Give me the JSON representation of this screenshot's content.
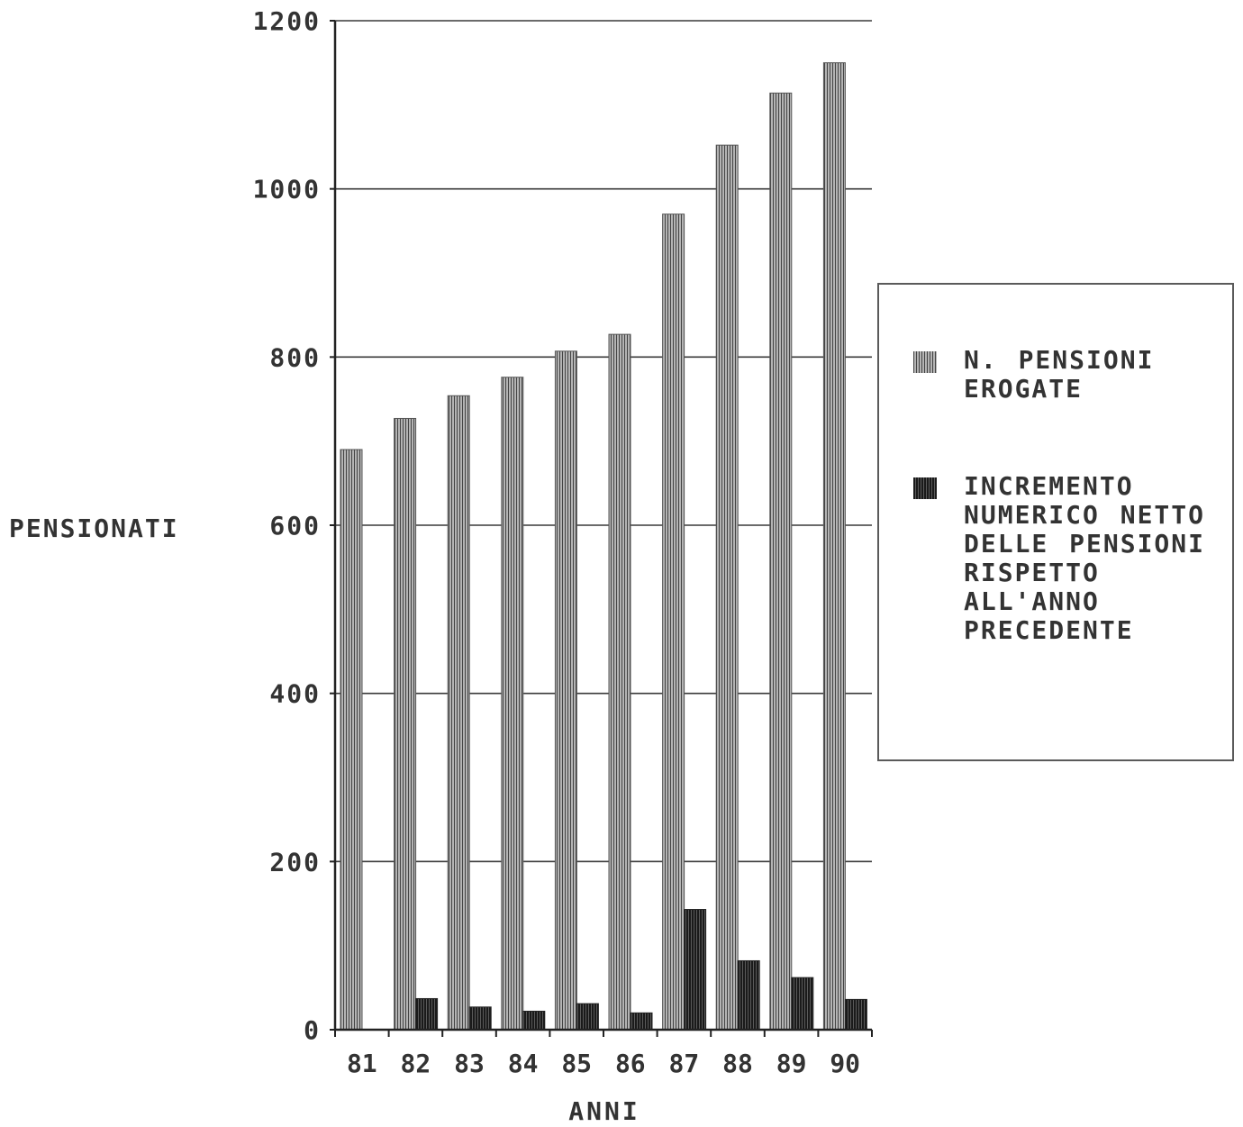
{
  "chart_data": {
    "type": "bar",
    "title": "",
    "xlabel": "ANNI",
    "ylabel": "PENSIONATI",
    "ylim": [
      0,
      1200
    ],
    "yticks": [
      0,
      200,
      400,
      600,
      800,
      1000,
      1200
    ],
    "ytick_labels": [
      "0",
      "200",
      "400",
      "600",
      "800",
      "1000",
      "1200"
    ],
    "categories": [
      "81",
      "82",
      "83",
      "84",
      "85",
      "86",
      "87",
      "88",
      "89",
      "90"
    ],
    "grid": true,
    "legend_position": "right",
    "series": [
      {
        "name": "N. PENSIONI EROGATE",
        "color": "#8c8c8c",
        "values": [
          690,
          727,
          754,
          776,
          807,
          827,
          970,
          1052,
          1114,
          1150
        ]
      },
      {
        "name": "INCREMENTO NUMERICO NETTO DELLE PENSIONI RISPETTO ALL'ANNO PRECEDENTE",
        "color": "#3c3c3c",
        "values": [
          0,
          37,
          27,
          22,
          31,
          20,
          143,
          82,
          62,
          36
        ]
      }
    ]
  }
}
